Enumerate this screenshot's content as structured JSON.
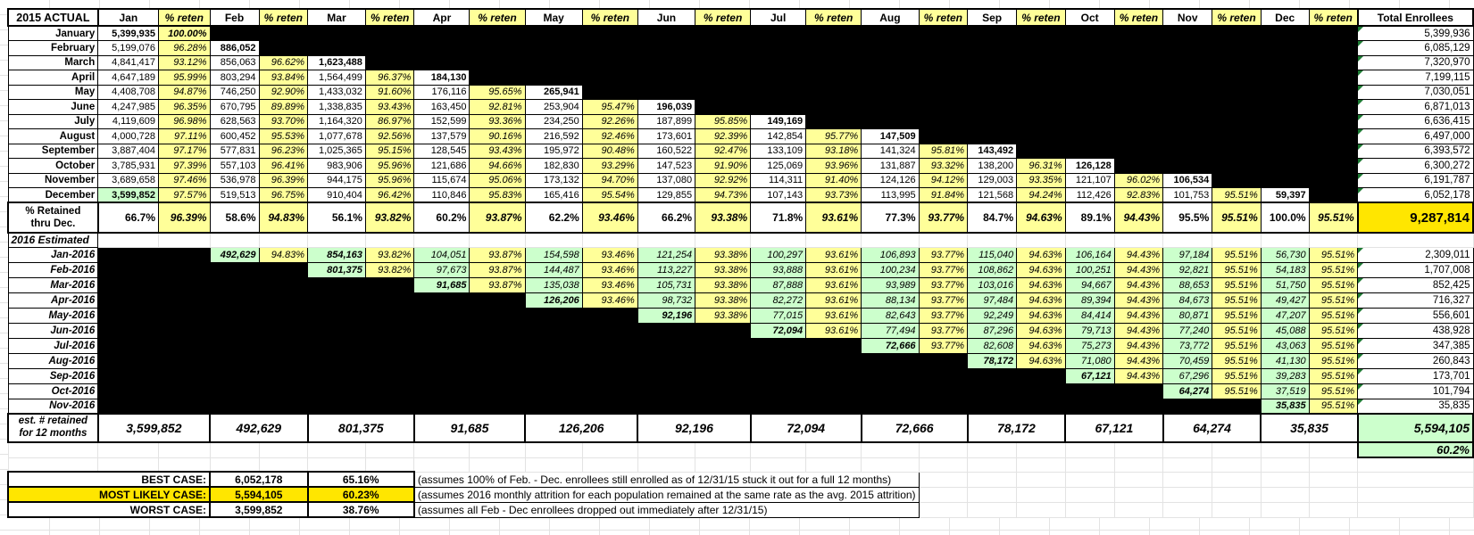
{
  "sheet": {
    "corner_label": "2015 ACTUAL",
    "reten_label": "% reten",
    "total_label": "Total Enrollees",
    "months": [
      "Jan",
      "Feb",
      "Mar",
      "Apr",
      "May",
      "Jun",
      "Jul",
      "Aug",
      "Sep",
      "Oct",
      "Nov",
      "Dec"
    ],
    "colors": {
      "reten_yellow": "#FFFF99",
      "highlight_yellow": "#FFE600",
      "estimate_green": "#CCFFCC",
      "empty_fill": "#000000",
      "error_marker_green": "#1E7B34"
    },
    "rows_2015": [
      {
        "label": "January",
        "cells": [
          "5,399,935",
          "100.00%"
        ],
        "bold": [
          0,
          1
        ],
        "green": [],
        "total": "5,399,936"
      },
      {
        "label": "February",
        "cells": [
          "5,199,076",
          "96.28%",
          "886,052"
        ],
        "bold": [
          2
        ],
        "green": [],
        "total": "6,085,129"
      },
      {
        "label": "March",
        "cells": [
          "4,841,417",
          "93.12%",
          "856,063",
          "96.62%",
          "1,623,488"
        ],
        "bold": [
          4
        ],
        "green": [],
        "total": "7,320,970"
      },
      {
        "label": "April",
        "cells": [
          "4,647,189",
          "95.99%",
          "803,294",
          "93.84%",
          "1,564,499",
          "96.37%",
          "184,130"
        ],
        "bold": [
          6
        ],
        "green": [],
        "total": "7,199,115"
      },
      {
        "label": "May",
        "cells": [
          "4,408,708",
          "94.87%",
          "746,250",
          "92.90%",
          "1,433,032",
          "91.60%",
          "176,116",
          "95.65%",
          "265,941"
        ],
        "bold": [
          8
        ],
        "green": [],
        "total": "7,030,051"
      },
      {
        "label": "June",
        "cells": [
          "4,247,985",
          "96.35%",
          "670,795",
          "89.89%",
          "1,338,835",
          "93.43%",
          "163,450",
          "92.81%",
          "253,904",
          "95.47%",
          "196,039"
        ],
        "bold": [
          10
        ],
        "green": [],
        "total": "6,871,013"
      },
      {
        "label": "July",
        "cells": [
          "4,119,609",
          "96.98%",
          "628,563",
          "93.70%",
          "1,164,320",
          "86.97%",
          "152,599",
          "93.36%",
          "234,250",
          "92.26%",
          "187,899",
          "95.85%",
          "149,169"
        ],
        "bold": [
          12
        ],
        "green": [],
        "total": "6,636,415"
      },
      {
        "label": "August",
        "cells": [
          "4,000,728",
          "97.11%",
          "600,452",
          "95.53%",
          "1,077,678",
          "92.56%",
          "137,579",
          "90.16%",
          "216,592",
          "92.46%",
          "173,601",
          "92.39%",
          "142,854",
          "95.77%",
          "147,509"
        ],
        "bold": [
          14
        ],
        "green": [],
        "total": "6,497,000"
      },
      {
        "label": "September",
        "cells": [
          "3,887,404",
          "97.17%",
          "577,831",
          "96.23%",
          "1,025,365",
          "95.15%",
          "128,545",
          "93.43%",
          "195,972",
          "90.48%",
          "160,522",
          "92.47%",
          "133,109",
          "93.18%",
          "141,324",
          "95.81%",
          "143,492"
        ],
        "bold": [
          16
        ],
        "green": [],
        "total": "6,393,572"
      },
      {
        "label": "October",
        "cells": [
          "3,785,931",
          "97.39%",
          "557,103",
          "96.41%",
          "983,906",
          "95.96%",
          "121,686",
          "94.66%",
          "182,830",
          "93.29%",
          "147,523",
          "91.90%",
          "125,069",
          "93.96%",
          "131,887",
          "93.32%",
          "138,200",
          "96.31%",
          "126,128"
        ],
        "bold": [
          18
        ],
        "green": [],
        "total": "6,300,272"
      },
      {
        "label": "November",
        "cells": [
          "3,689,658",
          "97.46%",
          "536,978",
          "96.39%",
          "944,175",
          "95.96%",
          "115,674",
          "95.06%",
          "173,132",
          "94.70%",
          "137,080",
          "92.92%",
          "114,311",
          "91.40%",
          "124,126",
          "94.12%",
          "129,003",
          "93.35%",
          "121,107",
          "96.02%",
          "106,534"
        ],
        "bold": [
          20
        ],
        "green": [],
        "total": "6,191,787"
      },
      {
        "label": "December",
        "cells": [
          "3,599,852",
          "97.57%",
          "519,513",
          "96.75%",
          "910,404",
          "96.42%",
          "110,846",
          "95.83%",
          "165,416",
          "95.54%",
          "129,855",
          "94.73%",
          "107,143",
          "93.73%",
          "113,995",
          "91.84%",
          "121,568",
          "94.24%",
          "112,426",
          "92.83%",
          "101,753",
          "95.51%",
          "59,397"
        ],
        "bold": [
          0,
          22
        ],
        "green": [
          0
        ],
        "total": "6,052,178"
      }
    ],
    "retained_row": {
      "label": "% Retained\nthru Dec.",
      "cells": [
        "66.7%",
        "96.39%",
        "58.6%",
        "94.83%",
        "56.1%",
        "93.82%",
        "60.2%",
        "93.87%",
        "62.2%",
        "93.46%",
        "66.2%",
        "93.38%",
        "71.8%",
        "93.61%",
        "77.3%",
        "93.77%",
        "84.7%",
        "94.63%",
        "89.1%",
        "94.43%",
        "95.5%",
        "95.51%",
        "100.0%",
        "95.51%"
      ],
      "total": "9,287,814"
    },
    "estimated_label": "2016 Estimated",
    "rows_2016": [
      {
        "label": "Jan-2016",
        "pad": 2,
        "cells": [
          "492,629",
          "94.83%",
          "854,163",
          "93.82%",
          "104,051",
          "93.87%",
          "154,598",
          "93.46%",
          "121,254",
          "93.38%",
          "100,297",
          "93.61%",
          "106,893",
          "93.77%",
          "115,040",
          "94.63%",
          "106,164",
          "94.43%",
          "97,184",
          "95.51%",
          "56,730",
          "95.51%"
        ],
        "bold": [
          0,
          2
        ],
        "total": "2,309,011"
      },
      {
        "label": "Feb-2016",
        "pad": 4,
        "cells": [
          "801,375",
          "93.82%",
          "97,673",
          "93.87%",
          "144,487",
          "93.46%",
          "113,227",
          "93.38%",
          "93,888",
          "93.61%",
          "100,234",
          "93.77%",
          "108,862",
          "94.63%",
          "100,251",
          "94.43%",
          "92,821",
          "95.51%",
          "54,183",
          "95.51%"
        ],
        "bold": [
          0
        ],
        "total": "1,707,008"
      },
      {
        "label": "Mar-2016",
        "pad": 6,
        "cells": [
          "91,685",
          "93.87%",
          "135,038",
          "93.46%",
          "105,731",
          "93.38%",
          "87,888",
          "93.61%",
          "93,989",
          "93.77%",
          "103,016",
          "94.63%",
          "94,667",
          "94.43%",
          "88,653",
          "95.51%",
          "51,750",
          "95.51%"
        ],
        "bold": [
          0
        ],
        "total": "852,425"
      },
      {
        "label": "Apr-2016",
        "pad": 8,
        "cells": [
          "126,206",
          "93.46%",
          "98,732",
          "93.38%",
          "82,272",
          "93.61%",
          "88,134",
          "93.77%",
          "97,484",
          "94.63%",
          "89,394",
          "94.43%",
          "84,673",
          "95.51%",
          "49,427",
          "95.51%"
        ],
        "bold": [
          0
        ],
        "total": "716,327"
      },
      {
        "label": "May-2016",
        "pad": 10,
        "cells": [
          "92,196",
          "93.38%",
          "77,015",
          "93.61%",
          "82,643",
          "93.77%",
          "92,249",
          "94.63%",
          "84,414",
          "94.43%",
          "80,871",
          "95.51%",
          "47,207",
          "95.51%"
        ],
        "bold": [
          0
        ],
        "total": "556,601"
      },
      {
        "label": "Jun-2016",
        "pad": 12,
        "cells": [
          "72,094",
          "93.61%",
          "77,494",
          "93.77%",
          "87,296",
          "94.63%",
          "79,713",
          "94.43%",
          "77,240",
          "95.51%",
          "45,088",
          "95.51%"
        ],
        "bold": [
          0
        ],
        "total": "438,928"
      },
      {
        "label": "Jul-2016",
        "pad": 14,
        "cells": [
          "72,666",
          "93.77%",
          "82,608",
          "94.63%",
          "75,273",
          "94.43%",
          "73,772",
          "95.51%",
          "43,063",
          "95.51%"
        ],
        "bold": [
          0
        ],
        "total": "347,385"
      },
      {
        "label": "Aug-2016",
        "pad": 16,
        "cells": [
          "78,172",
          "94.63%",
          "71,080",
          "94.43%",
          "70,459",
          "95.51%",
          "41,130",
          "95.51%"
        ],
        "bold": [
          0
        ],
        "total": "260,843"
      },
      {
        "label": "Sep-2016",
        "pad": 18,
        "cells": [
          "67,121",
          "94.43%",
          "67,296",
          "95.51%",
          "39,283",
          "95.51%"
        ],
        "bold": [
          0
        ],
        "total": "173,701"
      },
      {
        "label": "Oct-2016",
        "pad": 20,
        "cells": [
          "64,274",
          "95.51%",
          "37,519",
          "95.51%"
        ],
        "bold": [
          0
        ],
        "total": "101,794"
      },
      {
        "label": "Nov-2016",
        "pad": 22,
        "cells": [
          "35,835",
          "95.51%"
        ],
        "bold": [
          0
        ],
        "total": "35,835"
      }
    ],
    "est_row": {
      "label": "est. # retained\nfor 12 months",
      "values": [
        "3,599,852",
        "492,629",
        "801,375",
        "91,685",
        "126,206",
        "92,196",
        "72,094",
        "72,666",
        "78,172",
        "67,121",
        "64,274",
        "35,835"
      ],
      "total": "5,594,105"
    },
    "pct_12mo": "60.2%",
    "cases": [
      {
        "label": "BEST CASE:",
        "value": "6,052,178",
        "pct": "65.16%",
        "note": "(assumes 100% of Feb. - Dec. enrollees still enrolled as of 12/31/15 stuck it out for a full 12 months)",
        "highlight": false
      },
      {
        "label": "MOST LIKELY CASE:",
        "value": "5,594,105",
        "pct": "60.23%",
        "note": "(assumes 2016 monthly attrition for each population remained at the same rate as the avg. 2015 attrition)",
        "highlight": true
      },
      {
        "label": "WORST CASE:",
        "value": "3,599,852",
        "pct": "38.76%",
        "note": "(assumes all Feb - Dec enrollees dropped out immediately after 12/31/15)",
        "highlight": false
      }
    ]
  }
}
